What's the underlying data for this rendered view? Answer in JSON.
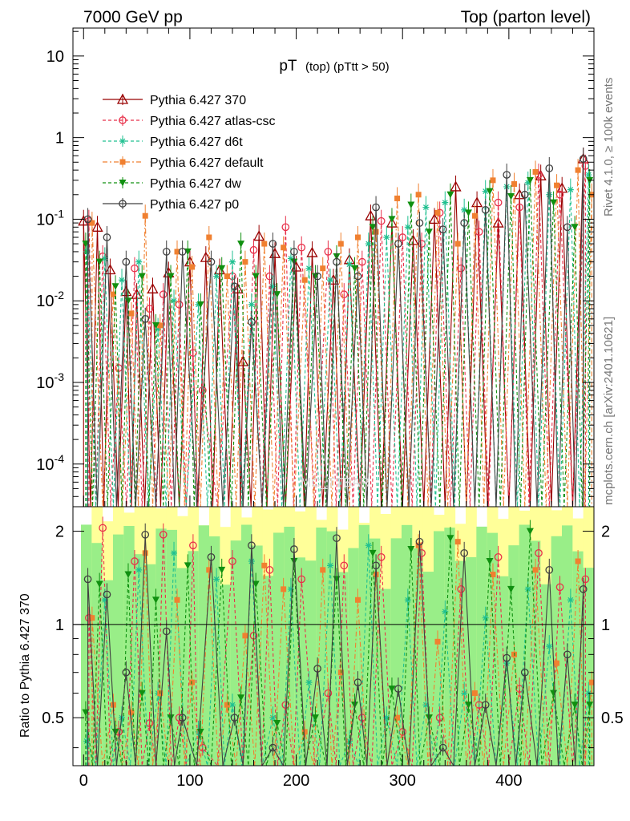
{
  "header": {
    "left": "7000 GeV pp",
    "right": "Top (parton level)"
  },
  "side_labels": {
    "rivet": "Rivet 4.1.0, ≥ 100k events",
    "mcplots": "mcplots.cern.ch [arXiv:2401.10621]"
  },
  "watermark": "MC_TTBAR",
  "colors": {
    "p370": "#990000",
    "atlas_csc": "#e8304a",
    "d6t": "#20c090",
    "default": "#f08030",
    "dw": "#109010",
    "p0": "#404040",
    "band_yellow": "#ffff99",
    "band_green": "#99ee88"
  },
  "chart_data": [
    {
      "id": "main",
      "type": "line",
      "title_main": "pT",
      "title_sub": "(top) (pTtt > 50)",
      "xlabel": "",
      "ylabel": "",
      "xlim": [
        -10,
        480
      ],
      "ylim": [
        3e-05,
        22
      ],
      "yscale": "log",
      "y_ticks": [
        {
          "base": "10",
          "exp": "-4",
          "value": 0.0001
        },
        {
          "base": "10",
          "exp": "-3",
          "value": 0.001
        },
        {
          "base": "10",
          "exp": "-2",
          "value": 0.01
        },
        {
          "base": "10",
          "exp": "-1",
          "value": 0.1
        },
        {
          "base": "1",
          "exp": "",
          "value": 1
        },
        {
          "base": "10",
          "exp": "",
          "value": 10
        }
      ],
      "legend_position": "top-left",
      "series": [
        {
          "key": "p370",
          "name": "Pythia 6.427 370",
          "marker": "triangle-open",
          "dash": "solid",
          "x": [
            0,
            13,
            25,
            40,
            50,
            65,
            80,
            100,
            115,
            128,
            145,
            150,
            165,
            180,
            200,
            215,
            235,
            250,
            270,
            290,
            310,
            330,
            350,
            370,
            390,
            410,
            430,
            450,
            470
          ],
          "y": [
            0.095,
            0.08,
            0.024,
            0.013,
            0.012,
            0.014,
            0.022,
            0.03,
            0.034,
            0.024,
            0.014,
            0.0018,
            0.062,
            0.038,
            0.026,
            0.039,
            0.018,
            0.032,
            0.11,
            0.09,
            0.055,
            0.1,
            0.25,
            0.16,
            0.09,
            0.2,
            0.34,
            0.24,
            0.55
          ]
        },
        {
          "key": "atlas_csc",
          "name": "Pythia 6.427 atlas-csc",
          "marker": "circle-open",
          "dash": "dashed",
          "x": [
            5,
            18,
            33,
            48,
            62,
            75,
            90,
            103,
            112,
            140,
            160,
            175,
            190,
            205,
            230,
            245,
            262,
            280,
            300,
            318,
            335,
            355,
            372,
            390,
            410,
            428,
            448,
            472
          ],
          "y": [
            0.095,
            0.035,
            0.0015,
            0.025,
            0.008,
            0.012,
            0.009,
            0.0023,
            0.0008,
            0.02,
            0.042,
            0.02,
            0.08,
            0.045,
            0.04,
            0.012,
            0.03,
            0.095,
            0.06,
            0.05,
            0.12,
            0.025,
            0.07,
            0.16,
            0.14,
            0.35,
            0.2,
            0.45
          ]
        },
        {
          "key": "d6t",
          "name": "Pythia 6.427 d6t",
          "marker": "asterisk",
          "dash": "dashed",
          "x": [
            3,
            20,
            36,
            52,
            70,
            85,
            108,
            125,
            140,
            158,
            178,
            195,
            212,
            232,
            250,
            268,
            285,
            305,
            322,
            340,
            358,
            378,
            398,
            418,
            438,
            458,
            475
          ],
          "y": [
            0.04,
            0.033,
            0.018,
            0.03,
            0.0045,
            0.01,
            0.009,
            0.02,
            0.03,
            0.009,
            0.015,
            0.033,
            0.025,
            0.018,
            0.028,
            0.05,
            0.06,
            0.08,
            0.14,
            0.16,
            0.13,
            0.22,
            0.25,
            0.28,
            0.2,
            0.23,
            0.35
          ]
        },
        {
          "key": "default",
          "name": "Pythia 6.427 default",
          "marker": "square",
          "dash": "dashdot",
          "x": [
            8,
            28,
            45,
            58,
            72,
            88,
            102,
            118,
            135,
            152,
            170,
            188,
            208,
            225,
            242,
            258,
            275,
            295,
            315,
            333,
            352,
            368,
            385,
            405,
            425,
            445,
            465,
            478
          ],
          "y": [
            0.09,
            0.012,
            0.007,
            0.11,
            0.005,
            0.04,
            0.026,
            0.06,
            0.02,
            0.03,
            0.05,
            0.045,
            0.018,
            0.025,
            0.05,
            0.06,
            0.07,
            0.18,
            0.2,
            0.12,
            0.05,
            0.11,
            0.3,
            0.27,
            0.38,
            0.26,
            0.4,
            0.2
          ]
        },
        {
          "key": "dw",
          "name": "Pythia 6.427 dw",
          "marker": "triangle-down",
          "dash": "dashed",
          "x": [
            2,
            15,
            30,
            42,
            55,
            68,
            82,
            98,
            110,
            130,
            148,
            162,
            182,
            198,
            218,
            238,
            255,
            272,
            290,
            308,
            325,
            345,
            362,
            382,
            402,
            420,
            442,
            462,
            476
          ],
          "y": [
            0.05,
            0.03,
            0.015,
            0.01,
            0.02,
            0.005,
            0.02,
            0.04,
            0.009,
            0.025,
            0.05,
            0.02,
            0.012,
            0.03,
            0.02,
            0.035,
            0.025,
            0.08,
            0.1,
            0.15,
            0.07,
            0.2,
            0.12,
            0.22,
            0.19,
            0.3,
            0.16,
            0.08,
            0.3
          ]
        },
        {
          "key": "p0",
          "name": "Pythia 6.427 p0",
          "marker": "circle-open",
          "dash": "solid",
          "x": [
            4,
            22,
            40,
            58,
            78,
            93,
            120,
            142,
            158,
            178,
            198,
            220,
            238,
            258,
            275,
            296,
            316,
            338,
            358,
            378,
            398,
            415,
            438,
            455,
            470
          ],
          "y": [
            0.1,
            0.06,
            0.03,
            0.006,
            0.04,
            0.04,
            0.03,
            0.015,
            0.0055,
            0.05,
            0.04,
            0.02,
            0.03,
            0.02,
            0.14,
            0.05,
            0.09,
            0.075,
            0.09,
            0.13,
            0.35,
            0.2,
            0.42,
            0.08,
            0.55
          ]
        }
      ]
    },
    {
      "id": "ratio",
      "type": "line",
      "ylabel": "Ratio to Pythia 6.427 370",
      "xlim": [
        -10,
        480
      ],
      "ylim": [
        0.35,
        2.4
      ],
      "yscale": "log",
      "x_ticks": [
        "0",
        "100",
        "200",
        "300",
        "400"
      ],
      "x_tick_values": [
        0,
        100,
        200,
        300,
        400
      ],
      "y_ticks": [
        "0.5",
        "1",
        "2"
      ],
      "y_tick_values": [
        0.5,
        1,
        2
      ],
      "reference_line": 1,
      "series": [
        {
          "key": "atlas_csc",
          "x": [
            5,
            18,
            33,
            48,
            62,
            75,
            90,
            103,
            112,
            140,
            160,
            175,
            190,
            205,
            230,
            245,
            262,
            280,
            300,
            318,
            335,
            355,
            372,
            390,
            410,
            428,
            448,
            472
          ],
          "y": [
            1.05,
            2.05,
            0.45,
            1.6,
            0.48,
            1.95,
            0.5,
            1.8,
            0.4,
            1.6,
            0.92,
            1.5,
            0.55,
            1.4,
            0.6,
            1.55,
            0.5,
            1.65,
            0.45,
            1.7,
            0.5,
            1.3,
            0.55,
            1.65,
            0.62,
            1.7,
            1.32,
            1.4
          ]
        },
        {
          "key": "d6t",
          "x": [
            3,
            20,
            36,
            52,
            70,
            85,
            108,
            125,
            140,
            158,
            178,
            195,
            212,
            232,
            250,
            268,
            285,
            305,
            322,
            340,
            358,
            378,
            398,
            418,
            438,
            458,
            475
          ],
          "y": [
            0.42,
            1.2,
            0.5,
            1.5,
            0.6,
            1.7,
            0.45,
            1.4,
            0.55,
            1.6,
            0.5,
            1.3,
            0.65,
            1.55,
            0.42,
            1.8,
            0.5,
            1.2,
            0.55,
            1.1,
            0.6,
            1.05,
            0.75,
            1.3,
            0.85,
            1.2,
            0.6
          ]
        },
        {
          "key": "default",
          "x": [
            8,
            28,
            45,
            58,
            72,
            88,
            102,
            118,
            135,
            152,
            170,
            188,
            208,
            225,
            242,
            258,
            275,
            295,
            315,
            333,
            352,
            368,
            385,
            405,
            425,
            445,
            465,
            478
          ],
          "y": [
            1.05,
            0.55,
            0.52,
            1.7,
            0.6,
            1.2,
            0.65,
            1.5,
            0.55,
            0.92,
            1.55,
            1.3,
            0.45,
            1.5,
            0.7,
            1.2,
            1.45,
            0.5,
            1.8,
            0.88,
            1.85,
            0.6,
            1.45,
            0.8,
            1.5,
            0.75,
            1.6,
            0.65
          ]
        },
        {
          "key": "dw",
          "x": [
            2,
            15,
            30,
            42,
            55,
            68,
            82,
            98,
            110,
            130,
            148,
            162,
            182,
            198,
            218,
            238,
            255,
            272,
            290,
            308,
            325,
            345,
            362,
            382,
            402,
            420,
            442,
            462,
            476
          ],
          "y": [
            0.52,
            1.35,
            0.45,
            1.45,
            0.6,
            1.2,
            0.5,
            1.55,
            0.45,
            1.5,
            0.58,
            1.35,
            0.48,
            1.6,
            0.5,
            1.4,
            0.55,
            1.7,
            0.62,
            1.75,
            0.5,
            1.9,
            0.55,
            1.6,
            1.3,
            2.0,
            0.6,
            0.55,
            0.55
          ]
        },
        {
          "key": "p0",
          "x": [
            4,
            22,
            40,
            58,
            78,
            93,
            120,
            142,
            158,
            178,
            198,
            220,
            238,
            258,
            275,
            296,
            316,
            338,
            358,
            378,
            398,
            415,
            438,
            455,
            470
          ],
          "y": [
            1.4,
            1.25,
            0.7,
            1.95,
            0.95,
            0.5,
            1.65,
            0.5,
            1.8,
            0.4,
            1.75,
            0.72,
            1.9,
            0.65,
            1.55,
            0.62,
            1.85,
            0.4,
            1.7,
            0.55,
            0.78,
            0.7,
            1.5,
            0.8,
            1.3
          ]
        }
      ]
    }
  ]
}
